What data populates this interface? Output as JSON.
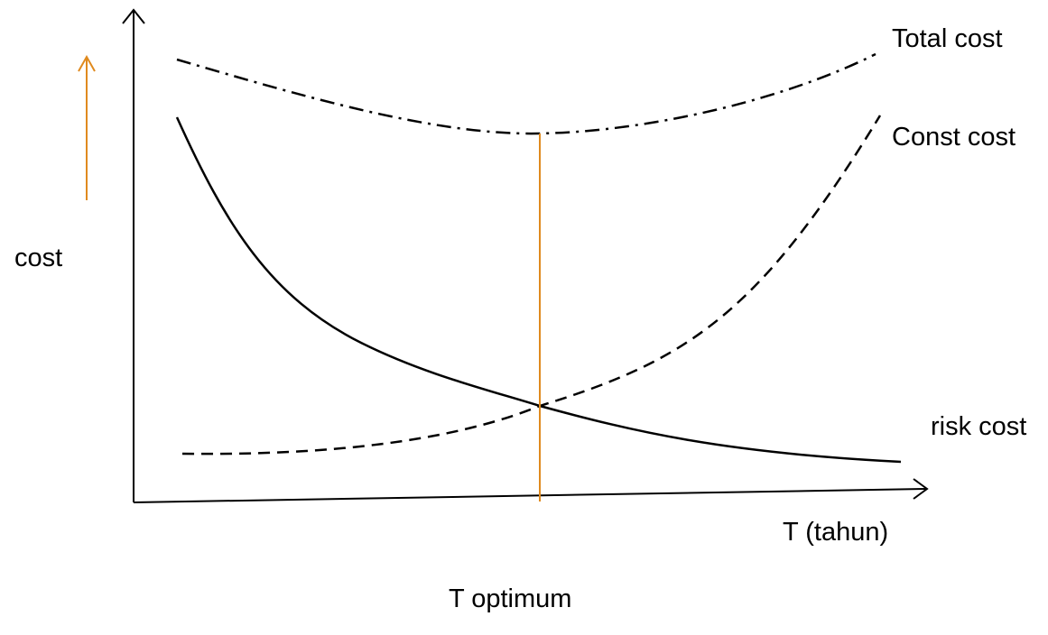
{
  "labels": {
    "y_axis": "cost",
    "x_axis": "T (tahun)",
    "total_cost": "Total cost",
    "const_cost": "Const cost",
    "risk_cost": "risk cost",
    "optimum": "T optimum"
  },
  "colors": {
    "background": "#ffffff",
    "curves": "#000000",
    "axes": "#000000",
    "optimum_line": "#e08a1e",
    "arrow_indicator": "#e08a1e"
  },
  "line_styles": {
    "total_cost": "dash-dot",
    "const_cost": "dashed",
    "risk_cost": "solid",
    "optimum_line": "solid"
  }
}
